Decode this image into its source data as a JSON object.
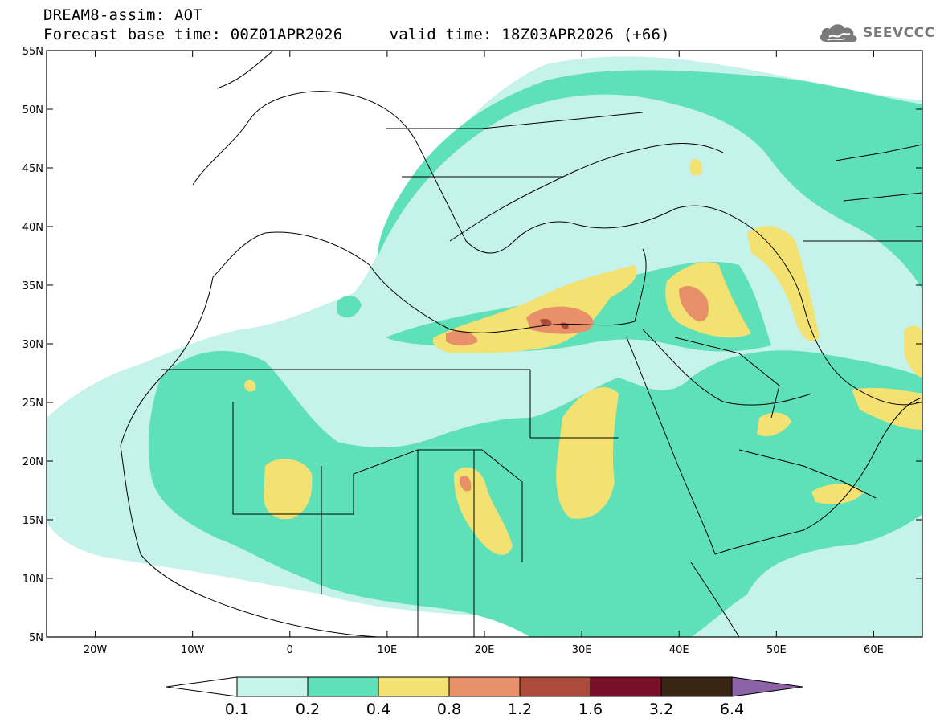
{
  "header": {
    "title_line1": "DREAM8-assim: AOT",
    "title_line2": "Forecast base time: 00Z01APR2026     valid time: 18Z03APR2026 (+66)"
  },
  "logo": {
    "text": "SEEVCCC",
    "icon": "cloud-icon",
    "color": "#7a7a7a"
  },
  "map": {
    "lon_range": [
      -25,
      65
    ],
    "lat_range": [
      5,
      55
    ],
    "lon_ticks": [
      {
        "value": -20,
        "label": "20W"
      },
      {
        "value": -10,
        "label": "10W"
      },
      {
        "value": 0,
        "label": "0"
      },
      {
        "value": 10,
        "label": "10E"
      },
      {
        "value": 20,
        "label": "20E"
      },
      {
        "value": 30,
        "label": "30E"
      },
      {
        "value": 40,
        "label": "40E"
      },
      {
        "value": 50,
        "label": "50E"
      },
      {
        "value": 60,
        "label": "60E"
      }
    ],
    "lat_ticks": [
      {
        "value": 55,
        "label": "55N"
      },
      {
        "value": 50,
        "label": "50N"
      },
      {
        "value": 45,
        "label": "45N"
      },
      {
        "value": 40,
        "label": "40N"
      },
      {
        "value": 35,
        "label": "35N"
      },
      {
        "value": 30,
        "label": "30N"
      },
      {
        "value": 25,
        "label": "25N"
      },
      {
        "value": 20,
        "label": "20N"
      },
      {
        "value": 15,
        "label": "15N"
      },
      {
        "value": 10,
        "label": "10N"
      },
      {
        "value": 5,
        "label": "5N"
      }
    ],
    "levels_colors": [
      "#c6f2ec",
      "#5ee0b8",
      "#f3e272",
      "#e8906a",
      "#ad4b3a",
      "#7a0f2a",
      "#3a2513",
      "#8d63a7"
    ]
  },
  "colorbar": {
    "colors": [
      "#c6f2ec",
      "#5ee0b8",
      "#f3e272",
      "#e8906a",
      "#ad4b3a",
      "#7a0f2a",
      "#3a2513"
    ],
    "over_color": "#8d63a7",
    "labels": [
      "0.1",
      "0.2",
      "0.4",
      "0.8",
      "1.2",
      "1.6",
      "3.2",
      "6.4"
    ]
  }
}
